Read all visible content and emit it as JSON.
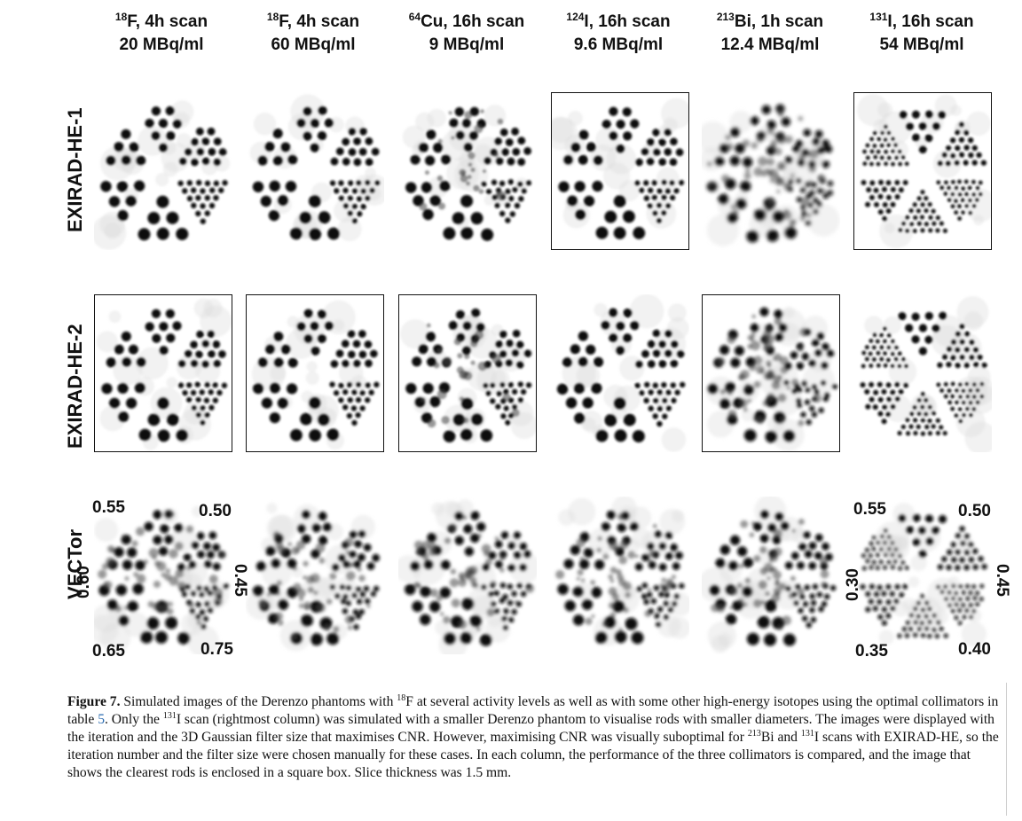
{
  "columns": [
    {
      "iso_mass": "18",
      "iso_rest": "F, 4h scan",
      "activity": "20 MBq/ml"
    },
    {
      "iso_mass": "18",
      "iso_rest": "F, 4h scan",
      "activity": "60 MBq/ml"
    },
    {
      "iso_mass": "64",
      "iso_rest": "Cu, 16h scan",
      "activity": "9 MBq/ml"
    },
    {
      "iso_mass": "124",
      "iso_rest": "I, 16h scan",
      "activity": "9.6 MBq/ml"
    },
    {
      "iso_mass": "213",
      "iso_rest": "Bi, 1h scan",
      "activity": "12.4 MBq/ml"
    },
    {
      "iso_mass": "131",
      "iso_rest": "I, 16h scan",
      "activity": "54 MBq/ml"
    }
  ],
  "rows": [
    {
      "label": "EXIRAD-HE-1",
      "boxed_column": 5,
      "extra_boxed": [
        3
      ]
    },
    {
      "label": "EXIRAD-HE-2",
      "boxed_column": 4,
      "extra_boxed": [
        0,
        1,
        2
      ]
    },
    {
      "label": "VECTor",
      "boxed_column": -1,
      "extra_boxed": []
    }
  ],
  "rod_diameters_left": {
    "top_left": "0.55",
    "top_right": "0.50",
    "left": "0.60",
    "right": "0.45",
    "bottom_left": "0.65",
    "bottom_right": "0.75"
  },
  "rod_diameters_right": {
    "top_left": "0.55",
    "top_right": "0.50",
    "left": "0.30",
    "right": "0.45",
    "bottom_left": "0.35",
    "bottom_right": "0.40"
  },
  "caption": {
    "label": "Figure 7.",
    "t1": " Simulated images of the Derenzo phantoms with ",
    "s1": "18",
    "t2": "F at several activity levels as well as with some other high-energy isotopes using the optimal collimators in table ",
    "table_ref": "5",
    "t3": ". Only the ",
    "s2": "131",
    "t4": "I scan (rightmost column) was simulated with a smaller Derenzo phantom to visualise rods with smaller diameters. The images were displayed with the iteration and the 3D Gaussian filter size that maximises CNR. However, maximising CNR was visually suboptimal for ",
    "s3": "213",
    "t5": "Bi and ",
    "s4": "131",
    "t6": "I scans with EXIRAD-HE, so the iteration number and the filter size were chosen manually for these cases. In each column, the performance of the three collimators is compared, and the image that shows the clearest rods is enclosed in a square box. Slice thickness was 1.5 mm."
  }
}
